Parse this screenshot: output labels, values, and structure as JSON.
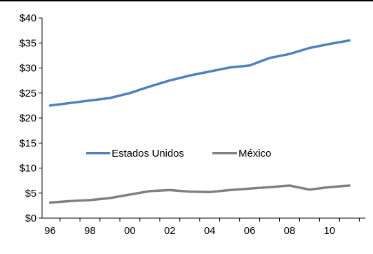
{
  "chart_data": {
    "type": "line",
    "x": [
      1996,
      1997,
      1998,
      1999,
      2000,
      2001,
      2002,
      2003,
      2004,
      2005,
      2006,
      2007,
      2008,
      2009,
      2010,
      2011
    ],
    "x_tick_values": [
      1996,
      1998,
      2000,
      2002,
      2004,
      2006,
      2008,
      2010
    ],
    "x_tick_labels": [
      "96",
      "98",
      "00",
      "02",
      "04",
      "06",
      "08",
      "10"
    ],
    "y_tick_values": [
      0,
      5,
      10,
      15,
      20,
      25,
      30,
      35,
      40
    ],
    "y_tick_labels": [
      "$0",
      "$5",
      "$10",
      "$15",
      "$20",
      "$25",
      "$30",
      "$35",
      "$40"
    ],
    "ylim": [
      0,
      40
    ],
    "xlim": [
      1995.6,
      2011.8
    ],
    "grid": false,
    "legend_position": "center",
    "series": [
      {
        "name": "Estados Unidos",
        "color": "#4f81bd",
        "values": [
          22.5,
          23.0,
          23.5,
          24.0,
          25.0,
          26.3,
          27.5,
          28.5,
          29.3,
          30.1,
          30.5,
          32.0,
          32.8,
          34.0,
          34.8,
          35.5
        ]
      },
      {
        "name": "México",
        "color": "#808080",
        "values": [
          3.1,
          3.4,
          3.6,
          4.0,
          4.7,
          5.4,
          5.6,
          5.3,
          5.2,
          5.6,
          5.9,
          6.2,
          6.5,
          5.7,
          6.2,
          6.5
        ]
      }
    ]
  }
}
